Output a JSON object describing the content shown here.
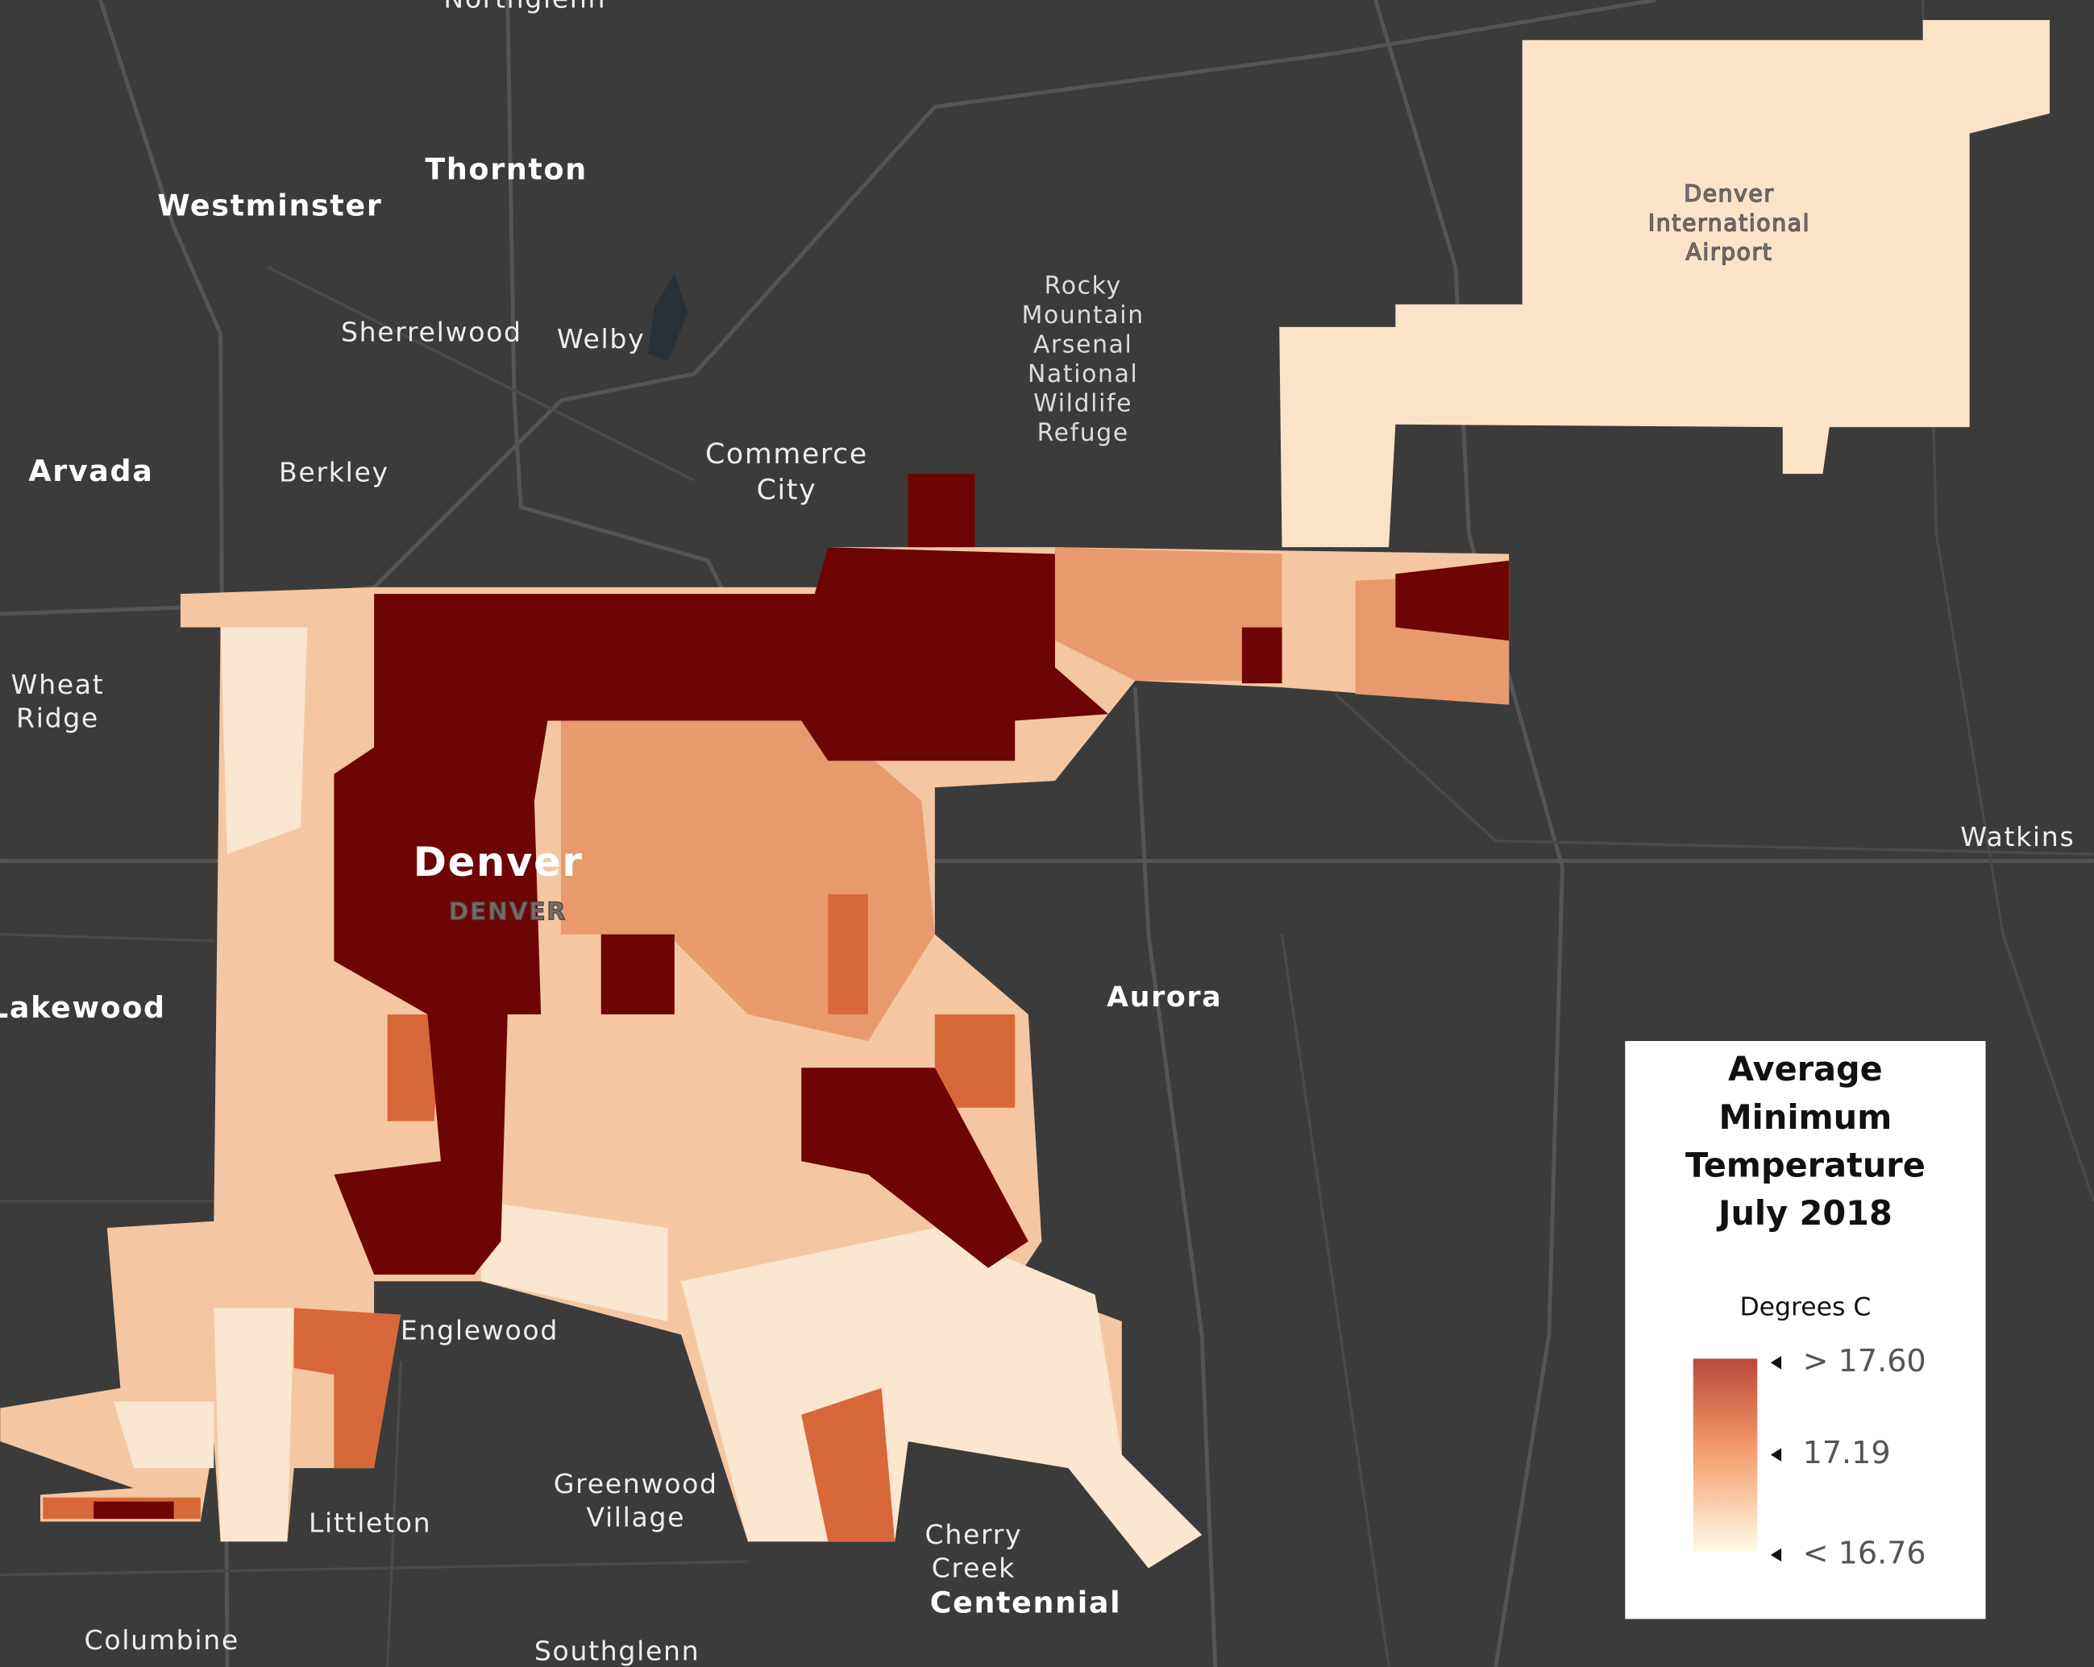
{
  "map": {
    "labels": [
      {
        "lines": [
          "Northglenn"
        ]
      },
      {
        "lines": [
          "Thornton"
        ]
      },
      {
        "lines": [
          "Westminster"
        ]
      },
      {
        "lines": [
          "Sherrelwood"
        ]
      },
      {
        "lines": [
          "Welby"
        ]
      },
      {
        "lines": [
          "Arvada"
        ]
      },
      {
        "lines": [
          "Berkley"
        ]
      },
      {
        "lines": [
          "Commerce",
          "City"
        ]
      },
      {
        "lines": [
          "Rocky",
          "Mountain",
          "Arsenal",
          "National",
          "Wildlife",
          "Refuge"
        ]
      },
      {
        "lines": [
          "Denver",
          "International",
          "Airport"
        ]
      },
      {
        "lines": [
          "Wheat",
          "Ridge"
        ]
      },
      {
        "lines": [
          "Denver"
        ]
      },
      {
        "lines": [
          "DENVER"
        ]
      },
      {
        "lines": [
          "Lakewood"
        ]
      },
      {
        "lines": [
          "Aurora"
        ]
      },
      {
        "lines": [
          "Watkins"
        ]
      },
      {
        "lines": [
          "Englewood"
        ]
      },
      {
        "lines": [
          "Greenwood",
          "Village"
        ]
      },
      {
        "lines": [
          "Littleton"
        ]
      },
      {
        "lines": [
          "Cherry",
          "Creek"
        ]
      },
      {
        "lines": [
          "Centennial"
        ]
      },
      {
        "lines": [
          "Columbine"
        ]
      },
      {
        "lines": [
          "Southglenn"
        ]
      }
    ]
  },
  "legend": {
    "title": [
      "Average",
      "Minimum",
      "Temperature",
      "July 2018"
    ],
    "unit": "Degrees C",
    "stops": [
      "> 17.60",
      "17.19",
      "< 16.76"
    ]
  }
}
